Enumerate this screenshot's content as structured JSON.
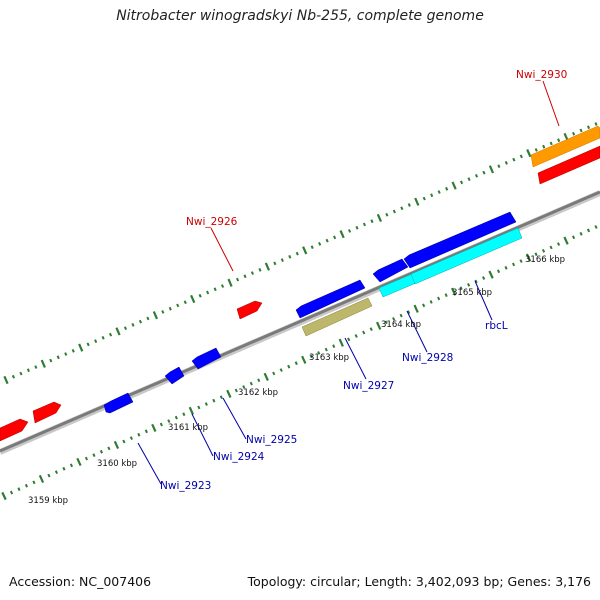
{
  "title": "Nitrobacter winogradskyi Nb-255, complete genome",
  "footer": {
    "accession": "Accession: NC_007406",
    "summary": "Topology: circular; Length: 3,402,093 bp; Genes: 3,176"
  },
  "colors": {
    "backbone": "#808080",
    "tick": "#2e7d32",
    "forward_gene": "#ff0000",
    "reverse_gene": "#0000ff",
    "rbcL_gene": "#00ffff",
    "nwi2927_gene": "#bdb76b",
    "nwi2930_gene": "#ff9900",
    "forward_label": "#cc0000",
    "reverse_label": "#0000aa"
  },
  "scale": {
    "unit": "kbp",
    "tick_labels": [
      "3159 kbp",
      "3160 kbp",
      "3161 kbp",
      "3162 kbp",
      "3163 kbp",
      "3164 kbp",
      "3165 kbp",
      "3166 kbp"
    ]
  },
  "genes": [
    {
      "id": "Nwi_2930",
      "strand": "forward",
      "color": "#ff9900",
      "labeled": true
    },
    {
      "id": "Nwi_2926",
      "strand": "forward",
      "color": "#ff0000",
      "labeled": true
    },
    {
      "id": "Nwi_2923",
      "strand": "reverse",
      "color": "#0000ff",
      "labeled": true
    },
    {
      "id": "Nwi_2924",
      "strand": "reverse",
      "color": "#0000ff",
      "labeled": true
    },
    {
      "id": "Nwi_2925",
      "strand": "reverse",
      "color": "#0000ff",
      "labeled": true
    },
    {
      "id": "Nwi_2927",
      "strand": "reverse",
      "color": "#0000ff",
      "labeled": true
    },
    {
      "id": "Nwi_2928",
      "strand": "reverse",
      "color": "#00ffff",
      "labeled": true
    },
    {
      "id": "rbcL",
      "strand": "reverse",
      "color": "#00ffff",
      "labeled": true
    }
  ]
}
